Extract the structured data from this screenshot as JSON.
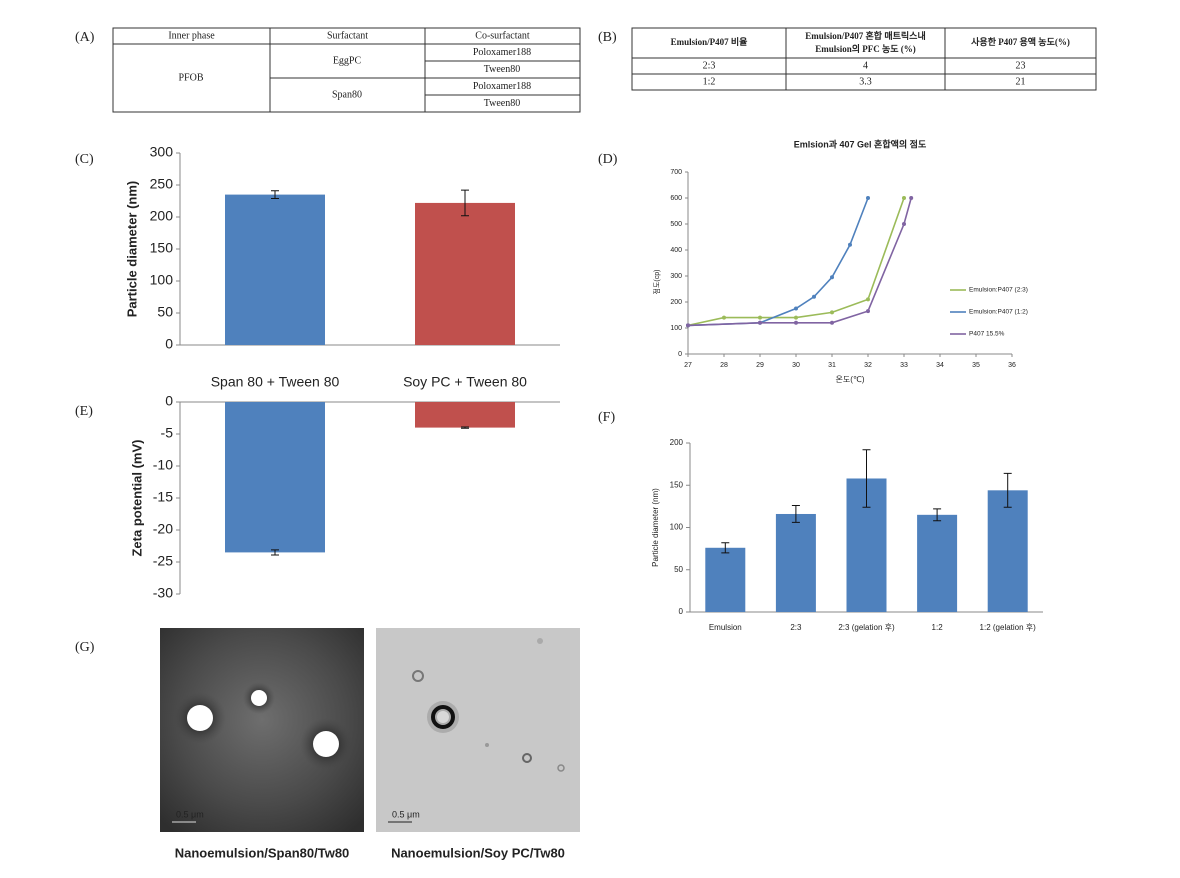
{
  "panel_labels": [
    "(A)",
    "(B)",
    "(C)",
    "(D)",
    "(E)",
    "(F)",
    "(G)"
  ],
  "table_a": {
    "header": [
      "Inner phase",
      "Surfactant",
      "Co-surfactant"
    ],
    "inner_phase": "PFOB",
    "surfactants": [
      {
        "name": "EggPC",
        "co_surfactants": [
          "Poloxamer188",
          "Tween80"
        ]
      },
      {
        "name": "Span80",
        "co_surfactants": [
          "Poloxamer188",
          "Tween80"
        ]
      }
    ]
  },
  "table_b": {
    "header": [
      "Emulsion/P407 비율",
      [
        "Emulsion/P407 혼합 매트릭스내",
        "Emulsion의 PFC 농도 (%)"
      ],
      "사용한 P407 용액 농도(%)"
    ],
    "rows": [
      [
        "2:3",
        "4",
        "23"
      ],
      [
        "1:2",
        "3.3",
        "21"
      ]
    ]
  },
  "chart_data": [
    {
      "type": "bar",
      "ylabel": "Particle diameter (nm)",
      "categories": [
        "Span 80 + Tween 80",
        "Soy PC + Tween 80"
      ],
      "values": [
        235,
        222
      ],
      "errors": [
        6,
        20
      ],
      "colors": [
        "#4f81bd",
        "#c0504d"
      ],
      "ylim": [
        0,
        300
      ],
      "yticks": [
        0,
        50,
        100,
        150,
        200,
        250,
        300
      ],
      "grid": false
    },
    {
      "type": "line",
      "title": "Emlsion과 407 Gel 혼합액의 점도",
      "xlabel": "온도(℃)",
      "ylabel": "점도(cp)",
      "xlim": [
        27,
        36
      ],
      "xticks": [
        27,
        28,
        29,
        30,
        31,
        32,
        33,
        34,
        35,
        36
      ],
      "ylim": [
        0,
        700
      ],
      "yticks": [
        0,
        100,
        200,
        300,
        400,
        500,
        600,
        700
      ],
      "grid": false,
      "legend": "right",
      "series": [
        {
          "name": "Emulsion:P407 (2:3)",
          "color": "#9bbb59",
          "x": [
            27,
            28,
            29,
            30,
            31,
            32,
            33
          ],
          "values": [
            110,
            140,
            140,
            140,
            160,
            210,
            600
          ]
        },
        {
          "name": "Emulsion:P407 (1:2)",
          "color": "#4f81bd",
          "x": [
            27,
            29,
            30,
            30.5,
            31,
            31.5,
            32
          ],
          "values": [
            110,
            120,
            175,
            220,
            295,
            420,
            600
          ]
        },
        {
          "name": "P407 15.5%",
          "color": "#8064a2",
          "x": [
            27,
            29,
            30,
            31,
            32,
            33,
            33.2
          ],
          "values": [
            110,
            120,
            120,
            120,
            165,
            500,
            600
          ]
        }
      ]
    },
    {
      "type": "bar",
      "ylabel": "Zeta potential (mV)",
      "values": [
        -23.5,
        -4
      ],
      "errors": [
        0.4,
        0.1
      ],
      "colors": [
        "#4f81bd",
        "#c0504d"
      ],
      "ylim": [
        -30,
        0
      ],
      "yticks": [
        0,
        -5,
        -10,
        -15,
        -20,
        -25,
        -30
      ],
      "grid": false
    },
    {
      "type": "bar",
      "ylabel": "Particle diameter (nm)",
      "categories": [
        "Emulsion",
        "2:3",
        "2:3 (gelation 후)",
        "1:2",
        "1:2 (gelation 후)"
      ],
      "values": [
        76,
        116,
        158,
        115,
        144
      ],
      "errors": [
        6,
        10,
        34,
        7,
        20
      ],
      "colors": [
        "#4f81bd",
        "#4f81bd",
        "#4f81bd",
        "#4f81bd",
        "#4f81bd"
      ],
      "ylim": [
        0,
        200
      ],
      "yticks": [
        0,
        50,
        100,
        150,
        200
      ],
      "grid": false
    }
  ],
  "micrographs": [
    {
      "scale_bar": "0.5 μm",
      "caption": "Nanoemulsion/Span80/Tw80"
    },
    {
      "scale_bar": "0.5 μm",
      "caption": "Nanoemulsion/Soy PC/Tw80"
    }
  ]
}
